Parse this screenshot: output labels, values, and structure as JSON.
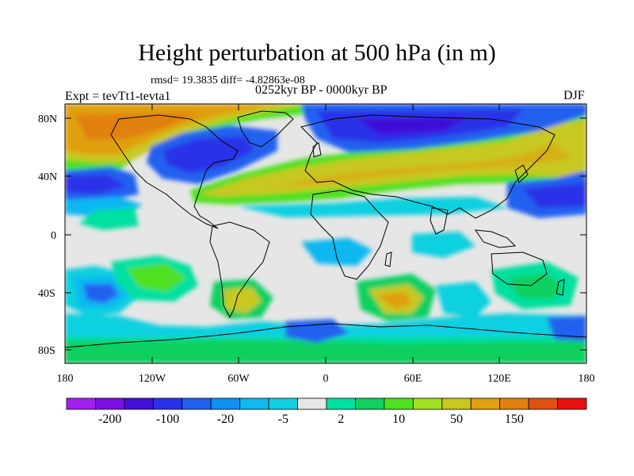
{
  "title": "Height perturbation at 500 hPa (in m)",
  "rmsd_line": "rmsd= 19.3835 diff= -4.82863e-08",
  "period": "0252kyr BP - 0000kyr BP",
  "expt": "Expt = tevTt1-tevta1",
  "season": "DJF",
  "map": {
    "lat_ticks": [
      "80N",
      "40N",
      "0",
      "40S",
      "80S"
    ],
    "lon_ticks": [
      "180",
      "120W",
      "60W",
      "0",
      "60E",
      "120E",
      "180"
    ]
  },
  "colorbar": {
    "colors": [
      "#a020f0",
      "#7a10e0",
      "#4010d8",
      "#2a30e8",
      "#2060f0",
      "#1090f0",
      "#10b8f0",
      "#10d0e0",
      "#e6e6e6",
      "#00e0a0",
      "#10d060",
      "#50e020",
      "#a0e020",
      "#c8c820",
      "#e0a010",
      "#e08010",
      "#e05010",
      "#e81010"
    ],
    "labels": [
      "-200",
      "-100",
      "-20",
      "-5",
      "2",
      "10",
      "50",
      "150"
    ]
  }
}
